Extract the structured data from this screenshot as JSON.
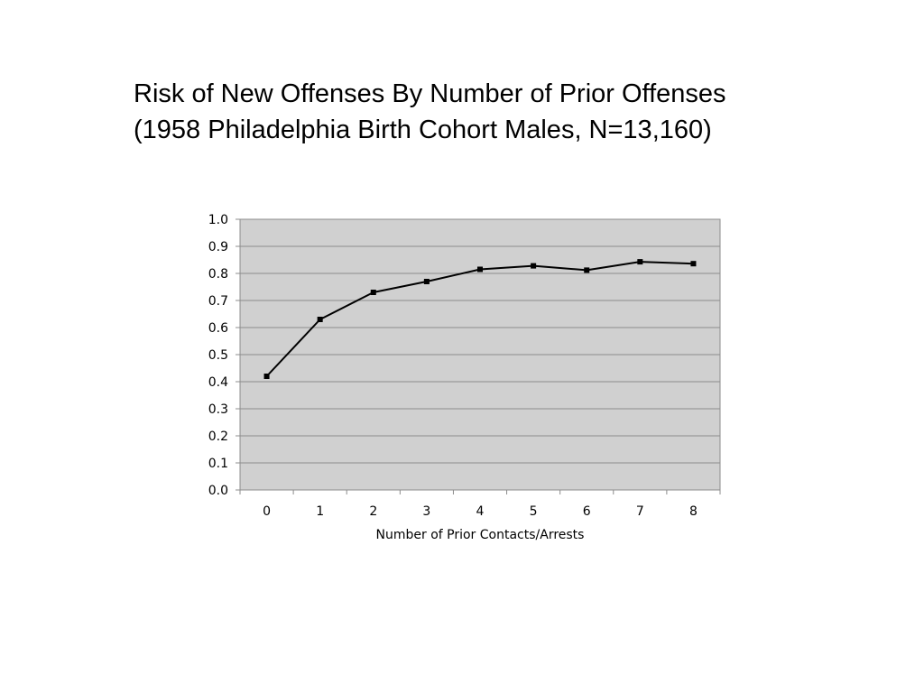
{
  "title_lines": [
    "Risk of New Offenses By Number of Prior Offenses",
    "(1958 Philadelphia Birth Cohort Males, N=13,160)"
  ],
  "colors": {
    "plot_background": "#d0d0d0",
    "gridline": "#8c8c8c",
    "line": "#000000",
    "marker": "#000000"
  },
  "chart_data": {
    "type": "line",
    "title": "Risk of New Offenses By Number of Prior Offenses (1958 Philadelphia Birth Cohort Males, N=13,160)",
    "xlabel": "Number of Prior Contacts/Arrests",
    "ylabel": "",
    "categories": [
      "0",
      "1",
      "2",
      "3",
      "4",
      "5",
      "6",
      "7",
      "8"
    ],
    "series": [
      {
        "values": [
          0.42,
          0.63,
          0.73,
          0.77,
          0.815,
          0.828,
          0.812,
          0.843,
          0.836
        ]
      }
    ],
    "ylim": [
      0.0,
      1.0
    ],
    "yticks": [
      "0.0",
      "0.1",
      "0.2",
      "0.3",
      "0.4",
      "0.5",
      "0.6",
      "0.7",
      "0.8",
      "0.9",
      "1.0"
    ],
    "grid": true,
    "legend": "none",
    "marker": "square"
  }
}
